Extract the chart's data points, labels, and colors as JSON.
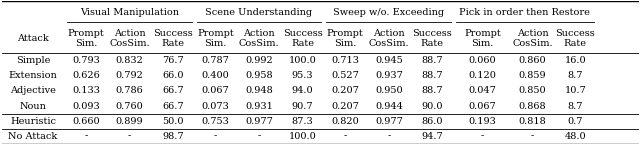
{
  "group_headers": [
    "Visual Manipulation",
    "Scene Understanding",
    "Sweep w/o. Exceeding",
    "Pick in order then Restore"
  ],
  "col_headers": [
    "Prompt\nSim.",
    "Action\nCosSim.",
    "Success\nRate"
  ],
  "rows": {
    "Simple": [
      "0.793",
      "0.832",
      "76.7",
      "0.787",
      "0.992",
      "100.0",
      "0.713",
      "0.945",
      "88.7",
      "0.060",
      "0.860",
      "16.0"
    ],
    "Extension": [
      "0.626",
      "0.792",
      "66.0",
      "0.400",
      "0.958",
      "95.3",
      "0.527",
      "0.937",
      "88.7",
      "0.120",
      "0.859",
      "8.7"
    ],
    "Adjective": [
      "0.133",
      "0.786",
      "66.7",
      "0.067",
      "0.948",
      "94.0",
      "0.207",
      "0.950",
      "88.7",
      "0.047",
      "0.850",
      "10.7"
    ],
    "Noun": [
      "0.093",
      "0.760",
      "66.7",
      "0.073",
      "0.931",
      "90.7",
      "0.207",
      "0.944",
      "90.0",
      "0.067",
      "0.868",
      "8.7"
    ],
    "Heuristic": [
      "0.660",
      "0.899",
      "50.0",
      "0.753",
      "0.977",
      "87.3",
      "0.820",
      "0.977",
      "86.0",
      "0.193",
      "0.818",
      "0.7"
    ],
    "No Attack": [
      "-",
      "-",
      "98.7",
      "-",
      "-",
      "100.0",
      "-",
      "-",
      "94.7",
      "-",
      "-",
      "48.0"
    ]
  },
  "background": "#ffffff",
  "font_size": 7.0,
  "header_font_size": 7.0
}
